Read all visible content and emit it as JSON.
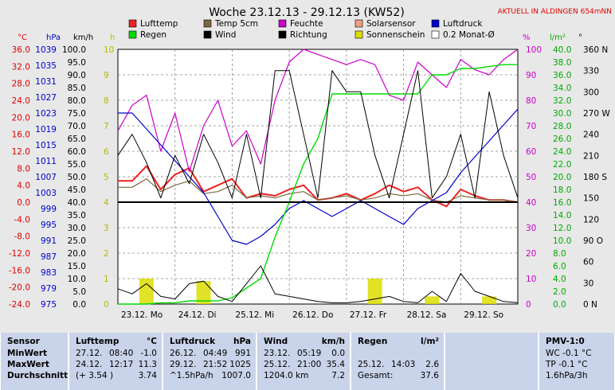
{
  "title": "Woche 23.12.13 - 29.12.13 (KW52)",
  "station": "AKTUELL IN ALDINGEN 654mNN",
  "colors": {
    "lufttemp": "#ee2222",
    "temp5cm": "#7a6a40",
    "feuchte": "#cc00cc",
    "solar": "#f0a080",
    "luftdruck": "#0000cc",
    "regen": "#00dd00",
    "wind": "#000000",
    "richtung": "#000000",
    "sonnenschein": "#dddd00",
    "monat": "#ffffff"
  },
  "legend": [
    {
      "key": "lufttemp",
      "label": "Lufttemp"
    },
    {
      "key": "temp5cm",
      "label": "Temp 5cm"
    },
    {
      "key": "feuchte",
      "label": "Feuchte"
    },
    {
      "key": "solar",
      "label": "Solarsensor"
    },
    {
      "key": "luftdruck",
      "label": "Luftdruck"
    },
    {
      "key": "regen",
      "label": "Regen"
    },
    {
      "key": "wind",
      "label": "Wind"
    },
    {
      "key": "richtung",
      "label": "Richtung"
    },
    {
      "key": "sonnenschein",
      "label": "Sonnenschein"
    },
    {
      "key": "monat",
      "label": "0.2 Monat-Ø"
    }
  ],
  "axes": {
    "temp": {
      "unit": "°C",
      "ticks": [
        "36.0",
        "32.0",
        "28.0",
        "24.0",
        "20.0",
        "16.0",
        "12.0",
        "8.0",
        "4.0",
        "0.0",
        "-4.0",
        "-8.0",
        "-12.0",
        "-16.0",
        "-20.0",
        "-24.0"
      ]
    },
    "hpa": {
      "unit": "hPa",
      "ticks": [
        "1039",
        "1035",
        "1031",
        "1027",
        "1023",
        "1019",
        "1015",
        "1011",
        "1007",
        "1003",
        "999",
        "995",
        "991",
        "987",
        "983",
        "979",
        "975"
      ]
    },
    "kmh": {
      "unit": "km/h",
      "ticks": [
        "100.0",
        "95.0",
        "90.0",
        "85.0",
        "80.0",
        "75.0",
        "70.0",
        "65.0",
        "60.0",
        "55.0",
        "50.0",
        "45.0",
        "40.0",
        "35.0",
        "30.0",
        "25.0",
        "20.0",
        "15.0",
        "10.0",
        "5.0",
        "0.0"
      ]
    },
    "h": {
      "unit": "h",
      "ticks": [
        "10",
        "9",
        "8",
        "7",
        "6",
        "5",
        "4",
        "3",
        "2",
        "1",
        "0"
      ]
    },
    "pct": {
      "unit": "%",
      "ticks": [
        "100",
        "90",
        "80",
        "70",
        "60",
        "50",
        "40",
        "30",
        "20",
        "10",
        "0"
      ]
    },
    "lm2": {
      "unit": "l/m²",
      "ticks": [
        "40.0",
        "38.0",
        "36.0",
        "34.0",
        "32.0",
        "30.0",
        "28.0",
        "26.0",
        "24.0",
        "22.0",
        "20.0",
        "18.0",
        "16.0",
        "14.0",
        "12.0",
        "10.0",
        "8.0",
        "6.0",
        "4.0",
        "2.0",
        "0.0"
      ]
    },
    "deg": {
      "unit": "°",
      "ticks": [
        "360 N",
        "330",
        "300",
        "270 W",
        "240",
        "210",
        "180 S",
        "150",
        "120",
        "90 O",
        "60",
        "30",
        "0 N"
      ]
    }
  },
  "x_ticks": [
    "23.12. Mo",
    "24.12. Di",
    "25.12. Mi",
    "26.12. Do",
    "27.12. Fr",
    "28.12. Sa",
    "29.12. So"
  ],
  "chart_data": {
    "type": "line",
    "title": "Woche 23.12.13 - 29.12.13 (KW52)",
    "x": [
      0,
      6,
      12,
      18,
      24,
      30,
      36,
      42,
      48,
      54,
      60,
      66,
      72,
      78,
      84,
      90,
      96,
      102,
      108,
      114,
      120,
      126,
      132,
      138,
      144,
      150,
      156,
      162,
      168
    ],
    "x_domain": [
      0,
      168
    ],
    "series": [
      {
        "name": "Lufttemp",
        "axis": "temp",
        "values": [
          5.0,
          5.0,
          8.5,
          3.0,
          6.5,
          8.0,
          2.5,
          4.0,
          5.5,
          1.0,
          2.0,
          1.5,
          3.0,
          4.0,
          0.5,
          1.0,
          2.0,
          0.5,
          2.0,
          4.0,
          2.5,
          3.5,
          0.5,
          -1.0,
          3.0,
          1.5,
          0.5,
          0.5,
          0.0
        ]
      },
      {
        "name": "Temp 5cm",
        "axis": "temp",
        "values": [
          3.5,
          3.5,
          5.5,
          2.5,
          4.0,
          5.0,
          2.0,
          2.5,
          4.0,
          1.0,
          1.5,
          1.0,
          2.0,
          2.5,
          0.5,
          1.0,
          1.5,
          0.5,
          1.0,
          2.0,
          1.5,
          2.0,
          0.5,
          0.0,
          1.5,
          1.0,
          0.5,
          0.5,
          0.0
        ]
      },
      {
        "name": "Feuchte",
        "axis": "pct",
        "values": [
          68,
          78,
          82,
          60,
          75,
          52,
          70,
          80,
          62,
          68,
          55,
          80,
          95,
          100,
          98,
          96,
          94,
          96,
          94,
          82,
          80,
          95,
          90,
          85,
          96,
          92,
          90,
          96,
          100
        ]
      },
      {
        "name": "Luftdruck",
        "axis": "hpa",
        "values": [
          1023,
          1023,
          1019,
          1015,
          1011,
          1007,
          1003,
          997,
          991,
          990,
          992,
          995,
          999,
          1001,
          999,
          997,
          999,
          1001,
          999,
          997,
          995,
          999,
          1001,
          1003,
          1008,
          1012,
          1016,
          1020,
          1024
        ]
      },
      {
        "name": "Regen",
        "axis": "lm2",
        "values": [
          0.0,
          0.0,
          0.0,
          0.2,
          0.2,
          0.5,
          0.5,
          0.5,
          1.0,
          2.5,
          4.0,
          10.5,
          16.0,
          22.0,
          26.0,
          33.0,
          33.0,
          33.0,
          33.0,
          33.0,
          33.0,
          33.0,
          36.0,
          36.0,
          37.0,
          37.0,
          37.3,
          37.6,
          37.6
        ]
      },
      {
        "name": "Wind",
        "axis": "kmh",
        "values": [
          6.0,
          4.0,
          8.0,
          3.0,
          2.0,
          8.0,
          9.0,
          3.0,
          1.0,
          8.0,
          15.0,
          4.0,
          3.0,
          2.0,
          1.0,
          0.5,
          0.5,
          1.0,
          2.0,
          3.0,
          1.0,
          0.5,
          5.0,
          1.0,
          12.0,
          5.0,
          3.0,
          1.0,
          0.5
        ]
      },
      {
        "name": "Richtung",
        "axis": "deg",
        "values": [
          210,
          240,
          200,
          150,
          210,
          170,
          240,
          200,
          150,
          240,
          150,
          330,
          330,
          240,
          150,
          330,
          300,
          300,
          210,
          150,
          240,
          330,
          150,
          180,
          240,
          150,
          300,
          210,
          150
        ]
      }
    ],
    "sonnenschein": {
      "axis": "h",
      "days": [
        0,
        1,
        2,
        3,
        4,
        5,
        6
      ],
      "hours": [
        1.0,
        0.9,
        0.0,
        0.0,
        1.0,
        0.3,
        0.3
      ]
    }
  },
  "table": {
    "sensor": {
      "header": "Sensor",
      "rows": [
        "MinWert",
        "MaxWert",
        "Durchschnitt"
      ]
    },
    "lufttemp": {
      "header": "Lufttemp",
      "unit": "°C",
      "rows": [
        [
          "27.12.",
          "08:40",
          "-1.0"
        ],
        [
          "24.12.",
          "12:17",
          "11.3"
        ],
        [
          "(+ 3.54 )",
          "",
          "3.74"
        ]
      ]
    },
    "luftdruck": {
      "header": "Luftdruck",
      "unit": "hPa",
      "rows": [
        [
          "26.12.",
          "04:49",
          "991"
        ],
        [
          "29.12.",
          "21:52",
          "1025"
        ],
        [
          "^1.5hPa/h",
          "",
          "1007.0"
        ]
      ]
    },
    "wind": {
      "header": "Wind",
      "unit": "km/h",
      "rows": [
        [
          "23.12.",
          "05:19",
          "0.0"
        ],
        [
          "25.12.",
          "21:00",
          "35.4"
        ],
        [
          "1204.0 km",
          "",
          "7.2"
        ]
      ]
    },
    "regen": {
      "header": "Regen",
      "unit": "l/m²",
      "rows": [
        [
          "",
          "",
          ""
        ],
        [
          "25.12.",
          "14:03",
          "2.6"
        ],
        [
          "Gesamt:",
          "",
          "37.6"
        ]
      ]
    },
    "pmv": {
      "header": "PMV-1:0",
      "rows": [
        "WC -0.1 °C",
        "TP -0.1 °C",
        "1.6hPa/3h"
      ]
    }
  }
}
